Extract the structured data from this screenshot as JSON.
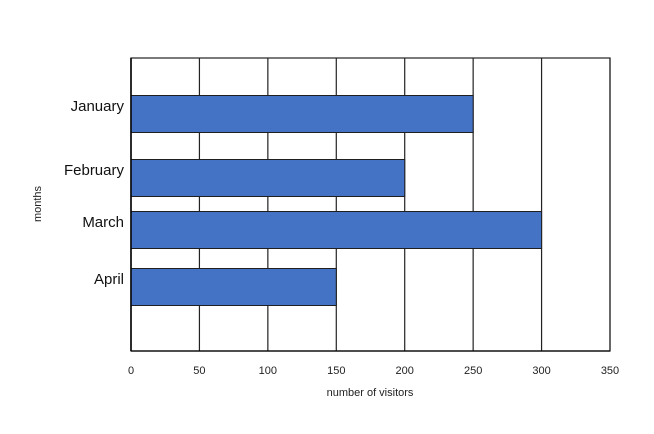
{
  "chart_data": {
    "type": "bar",
    "orientation": "horizontal",
    "categories": [
      "January",
      "February",
      "March",
      "April"
    ],
    "series": [
      {
        "values": [
          250,
          200,
          300,
          150
        ],
        "color": "#4472c4"
      }
    ],
    "xlabel": "number of visitors",
    "ylabel": "months",
    "xlim": [
      0,
      350
    ],
    "xticks": [
      0,
      50,
      100,
      150,
      200,
      250,
      300,
      350
    ],
    "grid": true,
    "legend": "none"
  },
  "colors": {
    "bar_fill": "#4472c4",
    "bar_stroke": "#1f1f1f",
    "grid": "#222222",
    "axis": "#000000"
  }
}
